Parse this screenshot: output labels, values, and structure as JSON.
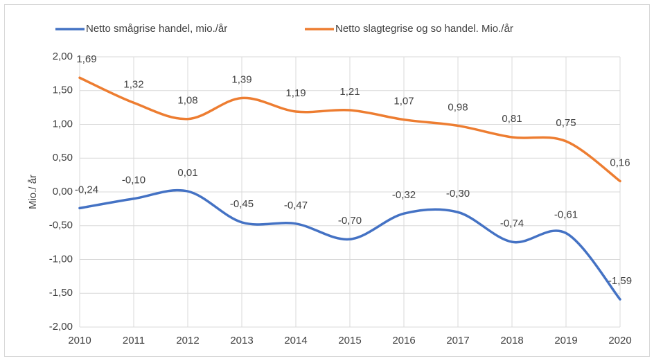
{
  "chart_data": {
    "type": "line",
    "x": [
      2010,
      2011,
      2012,
      2013,
      2014,
      2015,
      2016,
      2017,
      2018,
      2019,
      2020
    ],
    "xlim": [
      2010,
      2020
    ],
    "xticks": [
      2010,
      2011,
      2012,
      2013,
      2014,
      2015,
      2016,
      2017,
      2018,
      2019,
      2020
    ],
    "ylabel": "Mio./ år",
    "ylim": [
      -2,
      2
    ],
    "yticks": [
      {
        "value": -2,
        "label": "-2,00"
      },
      {
        "value": -1.5,
        "label": "-1,50"
      },
      {
        "value": -1,
        "label": "-1,00"
      },
      {
        "value": -0.5,
        "label": "-0,50"
      },
      {
        "value": 0,
        "label": "0,00"
      },
      {
        "value": 0.5,
        "label": "0,50"
      },
      {
        "value": 1,
        "label": "1,00"
      },
      {
        "value": 1.5,
        "label": "1,50"
      },
      {
        "value": 2,
        "label": "2,00"
      }
    ],
    "grid": true,
    "smooth": true,
    "legend": "top",
    "series": [
      {
        "name": "Netto smågrise handel, mio./år",
        "color": "#4472c4",
        "values": [
          -0.24,
          -0.1,
          0.01,
          -0.45,
          -0.47,
          -0.7,
          -0.32,
          -0.3,
          -0.74,
          -0.61,
          -1.59
        ],
        "value_labels": [
          "-0,24",
          "-0,10",
          "0,01",
          "-0,45",
          "-0,47",
          "-0,70",
          "-0,32",
          "-0,30",
          "-0,74",
          "-0,61",
          "-1,59"
        ]
      },
      {
        "name": "Netto slagtegrise og so handel. Mio./år",
        "color": "#ed7d31",
        "values": [
          1.69,
          1.32,
          1.08,
          1.39,
          1.19,
          1.21,
          1.07,
          0.98,
          0.81,
          0.75,
          0.16
        ],
        "value_labels": [
          "1,69",
          "1,32",
          "1,08",
          "1,39",
          "1,19",
          "1,21",
          "1,07",
          "0,98",
          "0,81",
          "0,75",
          "0,16"
        ]
      }
    ]
  }
}
